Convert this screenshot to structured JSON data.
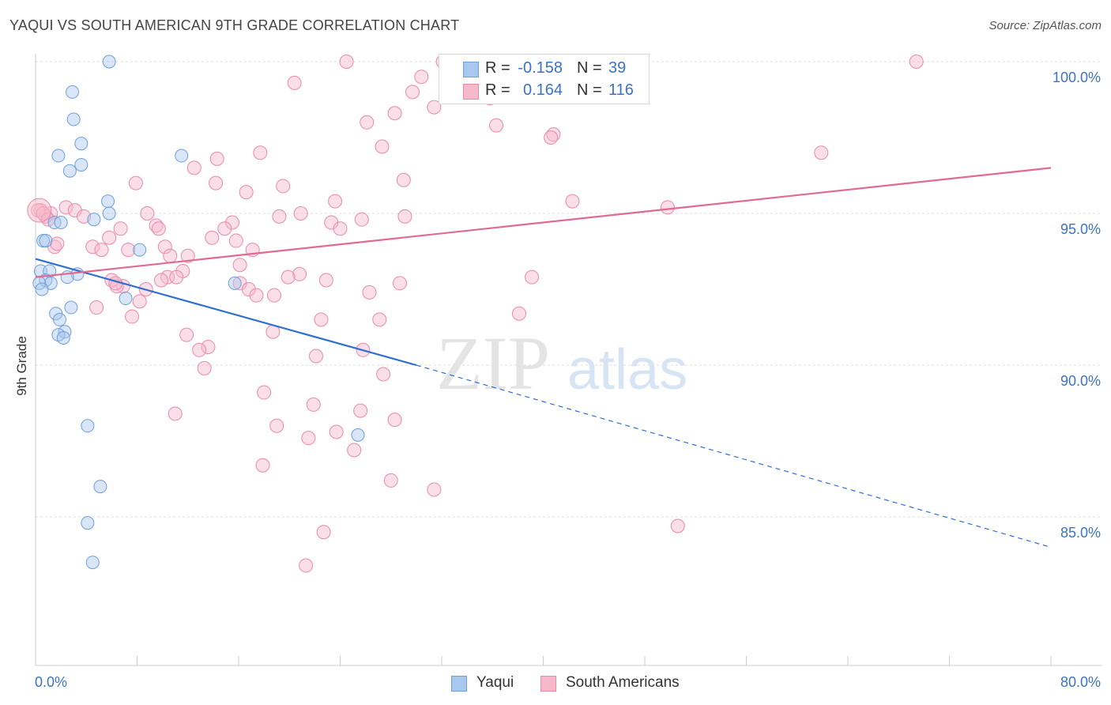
{
  "title": "YAQUI VS SOUTH AMERICAN 9TH GRADE CORRELATION CHART",
  "source": "Source: ZipAtlas.com",
  "watermark": {
    "zip": "ZIP",
    "atlas": "atlas"
  },
  "legend": {
    "r_label": "R =",
    "n_label": "N =",
    "rows": [
      {
        "name": "Yaqui",
        "r": "-0.158",
        "n": "39",
        "color": "#a9c8f0",
        "stroke": "#6f9fd8"
      },
      {
        "name": "South Americans",
        "r": "0.164",
        "n": "116",
        "color": "#f6b9cc",
        "stroke": "#e88aa8"
      }
    ]
  },
  "axes": {
    "y_label": "9th Grade",
    "x_min_label": "0.0%",
    "x_max_label": "80.0%",
    "y_ticks": [
      "100.0%",
      "95.0%",
      "90.0%",
      "85.0%"
    ]
  },
  "chart_data": {
    "type": "scatter",
    "title": "YAQUI VS SOUTH AMERICAN 9TH GRADE CORRELATION CHART",
    "xlabel": "",
    "ylabel": "9th Grade",
    "xlim": [
      0,
      80
    ],
    "ylim": [
      80,
      100.5
    ],
    "x_unit": "%",
    "y_unit": "%",
    "grid": true,
    "legend_position": "top-center",
    "series": [
      {
        "name": "Yaqui",
        "color": "#a9c8f0",
        "stroke": "#6f9fd8",
        "trend": {
          "x": [
            0,
            30
          ],
          "y": [
            93.5,
            90.0
          ],
          "dashed_to": [
            80,
            84.0
          ],
          "color": "#2f6fd0"
        },
        "points": [
          [
            5.8,
            100.0
          ],
          [
            2.9,
            99.0
          ],
          [
            3.0,
            98.1
          ],
          [
            3.6,
            97.3
          ],
          [
            1.8,
            96.9
          ],
          [
            11.5,
            96.9
          ],
          [
            3.6,
            96.6
          ],
          [
            2.7,
            96.4
          ],
          [
            5.7,
            95.4
          ],
          [
            5.8,
            95.0
          ],
          [
            4.6,
            94.8
          ],
          [
            1.5,
            94.7
          ],
          [
            2.0,
            94.7
          ],
          [
            0.6,
            94.1
          ],
          [
            0.8,
            94.1
          ],
          [
            8.2,
            93.8
          ],
          [
            0.4,
            93.1
          ],
          [
            1.1,
            93.1
          ],
          [
            3.3,
            93.0
          ],
          [
            2.5,
            92.9
          ],
          [
            0.8,
            92.8
          ],
          [
            1.2,
            92.7
          ],
          [
            0.3,
            92.7
          ],
          [
            15.7,
            92.7
          ],
          [
            0.5,
            92.5
          ],
          [
            7.1,
            92.2
          ],
          [
            2.8,
            91.9
          ],
          [
            1.6,
            91.7
          ],
          [
            1.9,
            91.5
          ],
          [
            2.3,
            91.1
          ],
          [
            1.8,
            91.0
          ],
          [
            2.2,
            90.9
          ],
          [
            4.1,
            88.0
          ],
          [
            25.4,
            87.7
          ],
          [
            5.1,
            86.0
          ],
          [
            4.1,
            84.8
          ],
          [
            4.5,
            83.5
          ]
        ]
      },
      {
        "name": "South Americans",
        "color": "#f6b9cc",
        "stroke": "#e88aa8",
        "trend": {
          "x": [
            0,
            80
          ],
          "y": [
            92.9,
            96.5
          ],
          "color": "#e06a92"
        },
        "points": [
          [
            24.5,
            100.0
          ],
          [
            32.1,
            100.0
          ],
          [
            69.4,
            100.0
          ],
          [
            36.0,
            99.7
          ],
          [
            30.4,
            99.5
          ],
          [
            20.4,
            99.3
          ],
          [
            29.7,
            99.0
          ],
          [
            35.8,
            98.8
          ],
          [
            31.4,
            98.5
          ],
          [
            28.3,
            98.3
          ],
          [
            26.1,
            98.0
          ],
          [
            36.3,
            97.9
          ],
          [
            40.8,
            97.6
          ],
          [
            40.6,
            97.5
          ],
          [
            27.3,
            97.2
          ],
          [
            17.7,
            97.0
          ],
          [
            61.9,
            97.0
          ],
          [
            14.3,
            96.8
          ],
          [
            12.5,
            96.5
          ],
          [
            29.0,
            96.1
          ],
          [
            7.9,
            96.0
          ],
          [
            14.2,
            96.0
          ],
          [
            19.5,
            95.9
          ],
          [
            16.6,
            95.7
          ],
          [
            42.3,
            95.4
          ],
          [
            23.6,
            95.4
          ],
          [
            49.8,
            95.2
          ],
          [
            2.4,
            95.2
          ],
          [
            0.4,
            95.1
          ],
          [
            3.1,
            95.1
          ],
          [
            1.2,
            95.0
          ],
          [
            8.8,
            95.0
          ],
          [
            20.9,
            95.0
          ],
          [
            0.8,
            94.9
          ],
          [
            3.8,
            94.9
          ],
          [
            19.2,
            94.9
          ],
          [
            29.1,
            94.9
          ],
          [
            25.7,
            94.8
          ],
          [
            15.5,
            94.7
          ],
          [
            23.3,
            94.7
          ],
          [
            9.5,
            94.6
          ],
          [
            24.0,
            94.5
          ],
          [
            6.7,
            94.5
          ],
          [
            14.9,
            94.5
          ],
          [
            9.7,
            94.5
          ],
          [
            13.9,
            94.2
          ],
          [
            15.8,
            94.1
          ],
          [
            5.8,
            94.2
          ],
          [
            1.5,
            93.9
          ],
          [
            4.5,
            93.9
          ],
          [
            10.2,
            93.9
          ],
          [
            17.1,
            93.8
          ],
          [
            7.3,
            93.8
          ],
          [
            5.2,
            93.8
          ],
          [
            10.6,
            93.6
          ],
          [
            12.0,
            93.6
          ],
          [
            16.1,
            93.3
          ],
          [
            11.6,
            93.1
          ],
          [
            20.8,
            93.0
          ],
          [
            19.9,
            92.9
          ],
          [
            10.4,
            92.9
          ],
          [
            39.1,
            92.9
          ],
          [
            6.0,
            92.8
          ],
          [
            9.9,
            92.8
          ],
          [
            11.1,
            92.9
          ],
          [
            22.9,
            92.8
          ],
          [
            28.7,
            92.7
          ],
          [
            6.9,
            92.6
          ],
          [
            8.7,
            92.5
          ],
          [
            16.1,
            92.7
          ],
          [
            26.3,
            92.4
          ],
          [
            16.8,
            92.5
          ],
          [
            6.4,
            92.6
          ],
          [
            17.4,
            92.3
          ],
          [
            18.8,
            92.3
          ],
          [
            8.2,
            92.1
          ],
          [
            4.8,
            91.9
          ],
          [
            7.6,
            91.6
          ],
          [
            22.5,
            91.5
          ],
          [
            27.1,
            91.5
          ],
          [
            38.1,
            91.7
          ],
          [
            11.9,
            91.0
          ],
          [
            18.7,
            91.1
          ],
          [
            13.6,
            90.6
          ],
          [
            12.9,
            90.5
          ],
          [
            25.8,
            90.5
          ],
          [
            22.1,
            90.3
          ],
          [
            13.3,
            89.9
          ],
          [
            27.4,
            89.7
          ],
          [
            18.0,
            89.1
          ],
          [
            21.9,
            88.7
          ],
          [
            11.0,
            88.4
          ],
          [
            25.6,
            88.5
          ],
          [
            28.3,
            88.2
          ],
          [
            19.0,
            88.0
          ],
          [
            23.7,
            87.8
          ],
          [
            21.5,
            87.6
          ],
          [
            25.1,
            87.2
          ],
          [
            17.9,
            86.7
          ],
          [
            28.0,
            86.2
          ],
          [
            31.4,
            85.9
          ],
          [
            50.6,
            84.7
          ],
          [
            22.7,
            84.5
          ],
          [
            21.3,
            83.4
          ],
          [
            0.2,
            95.1
          ],
          [
            0.6,
            95.0
          ],
          [
            1.0,
            94.8
          ],
          [
            1.7,
            94.0
          ],
          [
            6.3,
            92.7
          ]
        ]
      }
    ]
  }
}
